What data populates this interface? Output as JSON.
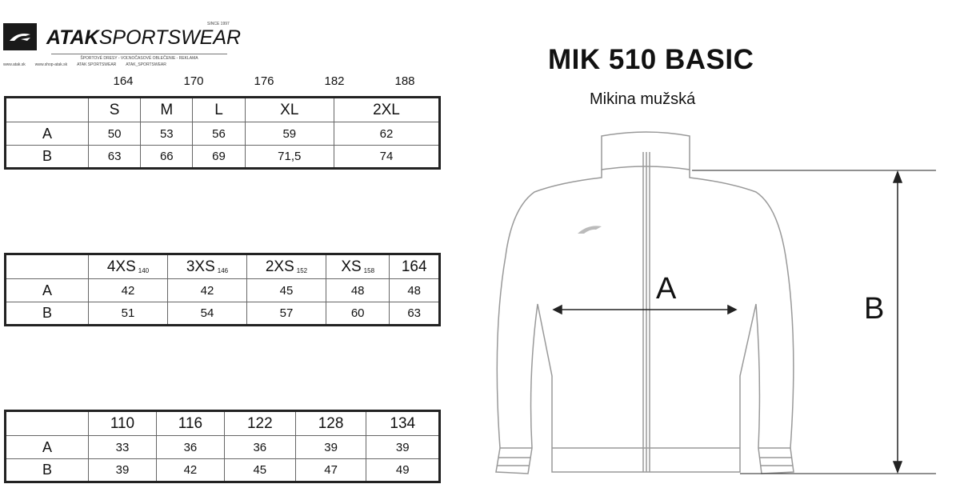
{
  "logo": {
    "brand_bold": "ATAK",
    "brand_light": "SPORTSWEAR",
    "since": "SINCE 1997",
    "tagline": "ŠPORTOVÉ DRESY - VOĽNOČASOVÉ OBLEČENIE - REKLAMA",
    "links": [
      "www.atak.sk",
      "www.shop-atak.sk",
      "ATAK SPORTSWEAR",
      "ATAK_SPORTSWEAR"
    ]
  },
  "product": {
    "title": "MIK 510 BASIC",
    "subtitle": "Mikina mužská"
  },
  "heights": [
    "164",
    "170",
    "176",
    "182",
    "188"
  ],
  "tables": [
    {
      "header": [
        {
          "size": "S"
        },
        {
          "size": "M"
        },
        {
          "size": "L"
        },
        {
          "size": "XL"
        },
        {
          "size": "2XL"
        }
      ],
      "rows": [
        {
          "label": "A",
          "values": [
            "50",
            "53",
            "56",
            "59",
            "62"
          ]
        },
        {
          "label": "B",
          "values": [
            "63",
            "66",
            "69",
            "71,5",
            "74"
          ]
        }
      ]
    },
    {
      "header": [
        {
          "size": "4XS",
          "sub": "140"
        },
        {
          "size": "3XS",
          "sub": "146"
        },
        {
          "size": "2XS",
          "sub": "152"
        },
        {
          "size": "XS",
          "sub": "158"
        },
        {
          "size": "164"
        }
      ],
      "rows": [
        {
          "label": "A",
          "values": [
            "42",
            "42",
            "45",
            "48",
            "48"
          ]
        },
        {
          "label": "B",
          "values": [
            "51",
            "54",
            "57",
            "60",
            "63"
          ]
        }
      ]
    },
    {
      "header": [
        {
          "size": "110"
        },
        {
          "size": "116"
        },
        {
          "size": "122"
        },
        {
          "size": "128"
        },
        {
          "size": "134"
        }
      ],
      "rows": [
        {
          "label": "A",
          "values": [
            "33",
            "36",
            "36",
            "39",
            "39"
          ]
        },
        {
          "label": "B",
          "values": [
            "39",
            "42",
            "45",
            "47",
            "49"
          ]
        }
      ]
    }
  ],
  "measure_labels": {
    "a": "A",
    "b": "B"
  }
}
